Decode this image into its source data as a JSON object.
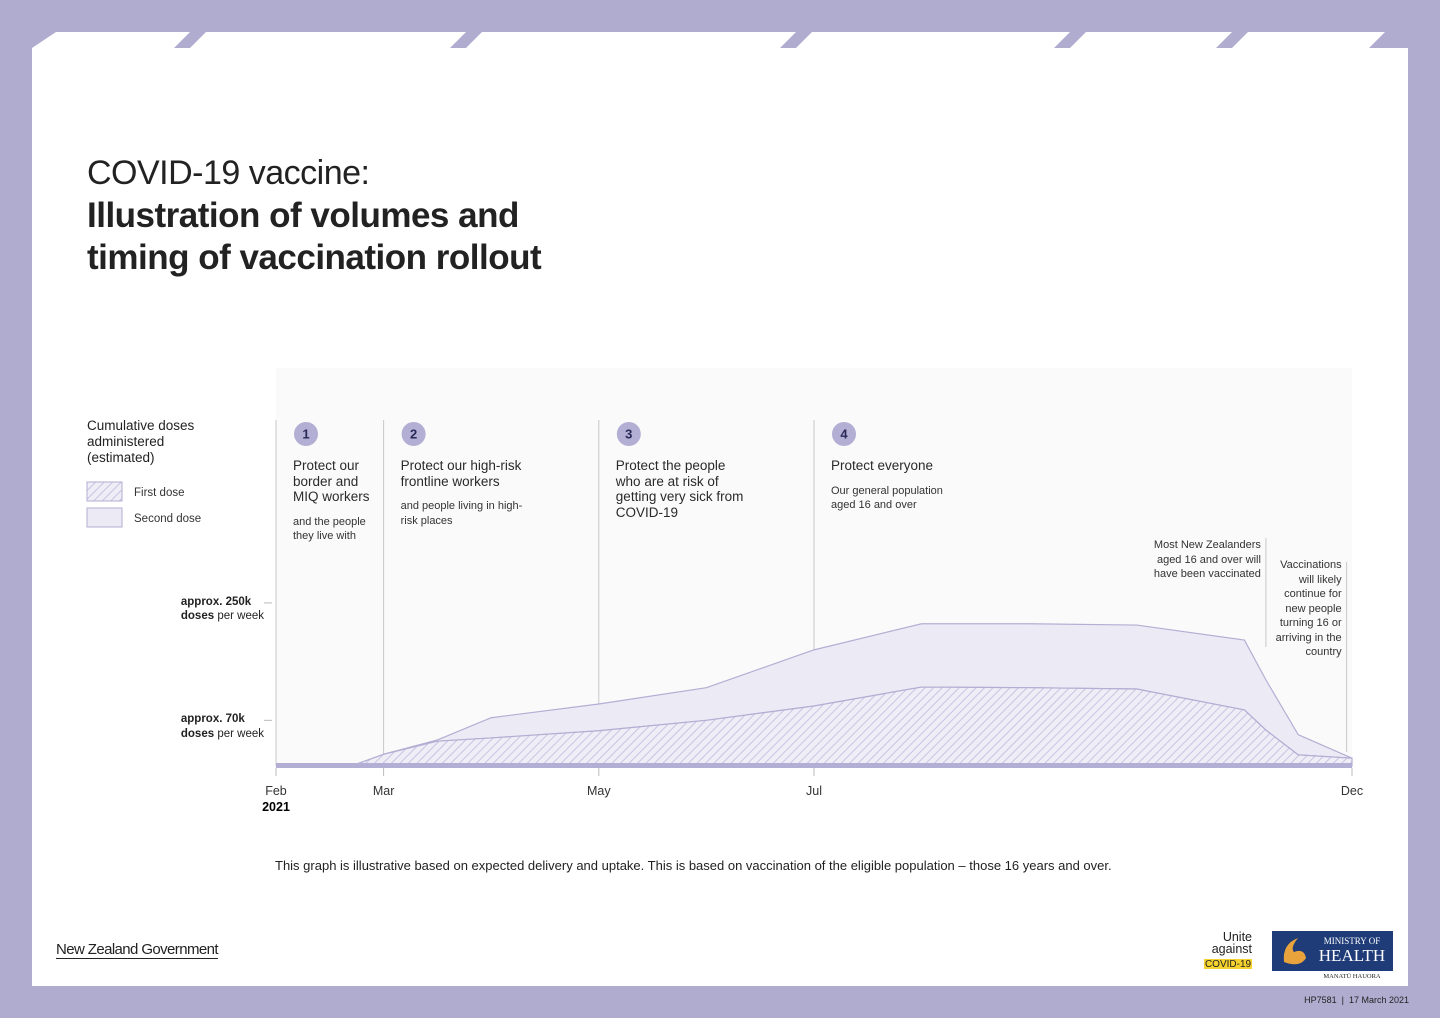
{
  "header": {
    "title_line1": "COVID-19 vaccine:",
    "title_line2": "Illustration of volumes and timing of vaccination rollout"
  },
  "chart_data": {
    "type": "area",
    "stacked": true,
    "legend_title": "Cumulative doses administered (estimated)",
    "x": [
      0,
      0.7,
      1,
      1.5,
      2,
      3,
      4,
      5,
      6,
      7,
      8,
      9,
      9.2,
      9.5,
      10
    ],
    "xlim": [
      0,
      10
    ],
    "xticks": [
      {
        "value": 0,
        "label": "Feb"
      },
      {
        "value": 1,
        "label": "Mar"
      },
      {
        "value": 3,
        "label": "May"
      },
      {
        "value": 5,
        "label": "Jul"
      },
      {
        "value": 10,
        "label": "Dec"
      }
    ],
    "x_year": "2021",
    "ylim": [
      0,
      610
    ],
    "yticks": [
      {
        "value": 70,
        "label": "approx. 70k"
      },
      {
        "value": 250,
        "label": "approx. 250k"
      }
    ],
    "ytick_unit_bold": "doses",
    "ytick_unit": "per week",
    "series": [
      {
        "name": "First dose",
        "color": "#c9c4e2",
        "values": [
          0,
          0,
          18,
          38,
          43,
          54,
          70,
          92,
          121,
          120,
          118,
          86,
          55,
          17,
          12
        ]
      },
      {
        "name": "Second dose",
        "color": "#ecebf5",
        "values": [
          0,
          0,
          0,
          2,
          31,
          41,
          50,
          86,
          97,
          98,
          98,
          107,
          77,
          31,
          0
        ]
      }
    ],
    "phases": [
      {
        "number": 1,
        "title": "Protect our border and MIQ workers",
        "note": "and the people they live with",
        "start": 0
      },
      {
        "number": 2,
        "title": "Protect our high-risk frontline workers",
        "note": "and people living in high-risk places",
        "start": 1
      },
      {
        "number": 3,
        "title": "Protect the people who are at risk of getting very sick from COVID-19",
        "note": null,
        "start": 3
      },
      {
        "number": 4,
        "title": "Protect everyone",
        "note": "Our general population aged 16 and over",
        "start": 5
      }
    ],
    "annotations": [
      {
        "text": "Most New Zealanders aged 16 and over will have been vaccinated",
        "x": 9.2
      },
      {
        "text": "Vaccinations will likely continue for new people turning 16 or arriving in the country",
        "x": 9.95
      }
    ],
    "footnote": "This graph is illustrative based on expected delivery and uptake. This is based on vaccination of the eligible population – those 16 years and over."
  },
  "footer": {
    "government": "New Zealand Government",
    "unite": "Unite against",
    "covid": "COVID-19",
    "ministry_top": "MINISTRY OF",
    "ministry": "HEALTH",
    "maori": "MANATŪ HAUORA",
    "code": "HP7581  |  17 March 2021"
  }
}
